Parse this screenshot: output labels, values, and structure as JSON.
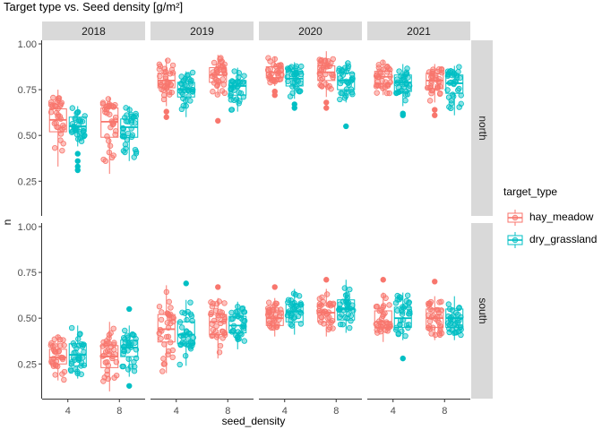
{
  "chart_data": {
    "type": "box_jitter",
    "title": "Target type vs. Seed density [g/m²]",
    "xlabel": "seed_density",
    "ylabel": "n",
    "ylim": [
      0.08,
      1.0
    ],
    "yticks": [
      "0.25",
      "0.50",
      "0.75",
      "1.00"
    ],
    "ytick_values": [
      0.25,
      0.5,
      0.75,
      1.0
    ],
    "x_categories": [
      "4",
      "8"
    ],
    "facet_columns": [
      "2018",
      "2019",
      "2020",
      "2021"
    ],
    "facet_rows": [
      "north",
      "south"
    ],
    "legend": {
      "title": "target_type",
      "position": "right",
      "entries": [
        {
          "name": "hay_meadow",
          "color": "#F8766D"
        },
        {
          "name": "dry_grassland",
          "color": "#00BFC4"
        }
      ]
    },
    "grid": false,
    "boxes": [
      {
        "row": "north",
        "year": "2018",
        "density": "4",
        "type": "hay_meadow",
        "min": 0.33,
        "q1": 0.52,
        "median": 0.585,
        "q3": 0.645,
        "max": 0.75,
        "outliers": []
      },
      {
        "row": "north",
        "year": "2018",
        "density": "4",
        "type": "dry_grassland",
        "min": 0.44,
        "q1": 0.52,
        "median": 0.55,
        "q3": 0.6,
        "max": 0.66,
        "outliers": [
          0.4,
          0.36,
          0.33,
          0.31
        ]
      },
      {
        "row": "north",
        "year": "2018",
        "density": "8",
        "type": "hay_meadow",
        "min": 0.29,
        "q1": 0.49,
        "median": 0.575,
        "q3": 0.65,
        "max": 0.71,
        "outliers": []
      },
      {
        "row": "north",
        "year": "2018",
        "density": "8",
        "type": "dry_grassland",
        "min": 0.36,
        "q1": 0.49,
        "median": 0.545,
        "q3": 0.59,
        "max": 0.66,
        "outliers": []
      },
      {
        "row": "north",
        "year": "2019",
        "density": "4",
        "type": "hay_meadow",
        "min": 0.66,
        "q1": 0.76,
        "median": 0.8,
        "q3": 0.84,
        "max": 0.92,
        "outliers": [
          0.63,
          0.6
        ]
      },
      {
        "row": "north",
        "year": "2019",
        "density": "4",
        "type": "dry_grassland",
        "min": 0.6,
        "q1": 0.71,
        "median": 0.75,
        "q3": 0.79,
        "max": 0.85,
        "outliers": []
      },
      {
        "row": "north",
        "year": "2019",
        "density": "8",
        "type": "hay_meadow",
        "min": 0.72,
        "q1": 0.79,
        "median": 0.83,
        "q3": 0.87,
        "max": 0.94,
        "outliers": [
          0.58
        ]
      },
      {
        "row": "north",
        "year": "2019",
        "density": "8",
        "type": "dry_grassland",
        "min": 0.63,
        "q1": 0.72,
        "median": 0.77,
        "q3": 0.8,
        "max": 0.87,
        "outliers": []
      },
      {
        "row": "north",
        "year": "2020",
        "density": "4",
        "type": "hay_meadow",
        "min": 0.77,
        "q1": 0.815,
        "median": 0.845,
        "q3": 0.875,
        "max": 0.93,
        "outliers": [
          0.74,
          0.72
        ]
      },
      {
        "row": "north",
        "year": "2020",
        "density": "4",
        "type": "dry_grassland",
        "min": 0.7,
        "q1": 0.77,
        "median": 0.81,
        "q3": 0.85,
        "max": 0.9,
        "outliers": [
          0.67,
          0.65
        ]
      },
      {
        "row": "north",
        "year": "2020",
        "density": "8",
        "type": "hay_meadow",
        "min": 0.71,
        "q1": 0.8,
        "median": 0.845,
        "q3": 0.88,
        "max": 0.96,
        "outliers": [
          0.68,
          0.65
        ]
      },
      {
        "row": "north",
        "year": "2020",
        "density": "8",
        "type": "dry_grassland",
        "min": 0.68,
        "q1": 0.75,
        "median": 0.8,
        "q3": 0.84,
        "max": 0.9,
        "outliers": [
          0.55
        ]
      },
      {
        "row": "north",
        "year": "2021",
        "density": "4",
        "type": "hay_meadow",
        "min": 0.72,
        "q1": 0.78,
        "median": 0.82,
        "q3": 0.85,
        "max": 0.91,
        "outliers": []
      },
      {
        "row": "north",
        "year": "2021",
        "density": "4",
        "type": "dry_grassland",
        "min": 0.66,
        "q1": 0.74,
        "median": 0.79,
        "q3": 0.83,
        "max": 0.89,
        "outliers": [
          0.62,
          0.61
        ]
      },
      {
        "row": "north",
        "year": "2021",
        "density": "8",
        "type": "hay_meadow",
        "min": 0.68,
        "q1": 0.755,
        "median": 0.8,
        "q3": 0.84,
        "max": 0.89,
        "outliers": [
          0.64,
          0.61
        ]
      },
      {
        "row": "north",
        "year": "2021",
        "density": "8",
        "type": "dry_grassland",
        "min": 0.61,
        "q1": 0.73,
        "median": 0.785,
        "q3": 0.83,
        "max": 0.88,
        "outliers": []
      },
      {
        "row": "south",
        "year": "2018",
        "density": "4",
        "type": "hay_meadow",
        "min": 0.16,
        "q1": 0.25,
        "median": 0.285,
        "q3": 0.33,
        "max": 0.41,
        "outliers": []
      },
      {
        "row": "south",
        "year": "2018",
        "density": "4",
        "type": "dry_grassland",
        "min": 0.17,
        "q1": 0.24,
        "median": 0.3,
        "q3": 0.36,
        "max": 0.46,
        "outliers": []
      },
      {
        "row": "south",
        "year": "2018",
        "density": "8",
        "type": "hay_meadow",
        "min": 0.1,
        "q1": 0.23,
        "median": 0.29,
        "q3": 0.35,
        "max": 0.48,
        "outliers": []
      },
      {
        "row": "south",
        "year": "2018",
        "density": "8",
        "type": "dry_grassland",
        "min": 0.18,
        "q1": 0.29,
        "median": 0.34,
        "q3": 0.38,
        "max": 0.46,
        "outliers": [
          0.55,
          0.13
        ]
      },
      {
        "row": "south",
        "year": "2019",
        "density": "4",
        "type": "hay_meadow",
        "min": 0.2,
        "q1": 0.37,
        "median": 0.44,
        "q3": 0.52,
        "max": 0.68,
        "outliers": []
      },
      {
        "row": "south",
        "year": "2019",
        "density": "4",
        "type": "dry_grassland",
        "min": 0.24,
        "q1": 0.36,
        "median": 0.41,
        "q3": 0.48,
        "max": 0.6,
        "outliers": [
          0.69
        ]
      },
      {
        "row": "south",
        "year": "2019",
        "density": "8",
        "type": "hay_meadow",
        "min": 0.28,
        "q1": 0.41,
        "median": 0.48,
        "q3": 0.52,
        "max": 0.61,
        "outliers": [
          0.67
        ]
      },
      {
        "row": "south",
        "year": "2019",
        "density": "8",
        "type": "dry_grassland",
        "min": 0.33,
        "q1": 0.42,
        "median": 0.46,
        "q3": 0.51,
        "max": 0.59,
        "outliers": []
      },
      {
        "row": "south",
        "year": "2020",
        "density": "4",
        "type": "hay_meadow",
        "min": 0.4,
        "q1": 0.46,
        "median": 0.5,
        "q3": 0.54,
        "max": 0.61,
        "outliers": [
          0.67
        ]
      },
      {
        "row": "south",
        "year": "2020",
        "density": "4",
        "type": "dry_grassland",
        "min": 0.41,
        "q1": 0.48,
        "median": 0.535,
        "q3": 0.575,
        "max": 0.66,
        "outliers": []
      },
      {
        "row": "south",
        "year": "2020",
        "density": "8",
        "type": "hay_meadow",
        "min": 0.4,
        "q1": 0.48,
        "median": 0.53,
        "q3": 0.57,
        "max": 0.66,
        "outliers": [
          0.71
        ]
      },
      {
        "row": "south",
        "year": "2020",
        "density": "8",
        "type": "dry_grassland",
        "min": 0.42,
        "q1": 0.49,
        "median": 0.55,
        "q3": 0.6,
        "max": 0.71,
        "outliers": []
      },
      {
        "row": "south",
        "year": "2021",
        "density": "4",
        "type": "hay_meadow",
        "min": 0.37,
        "q1": 0.45,
        "median": 0.48,
        "q3": 0.54,
        "max": 0.64,
        "outliers": [
          0.71
        ]
      },
      {
        "row": "south",
        "year": "2021",
        "density": "4",
        "type": "dry_grassland",
        "min": 0.38,
        "q1": 0.45,
        "median": 0.5,
        "q3": 0.56,
        "max": 0.64,
        "outliers": [
          0.28
        ]
      },
      {
        "row": "south",
        "year": "2021",
        "density": "8",
        "type": "hay_meadow",
        "min": 0.38,
        "q1": 0.45,
        "median": 0.5,
        "q3": 0.55,
        "max": 0.62,
        "outliers": [
          0.7
        ]
      },
      {
        "row": "south",
        "year": "2021",
        "density": "8",
        "type": "dry_grassland",
        "min": 0.38,
        "q1": 0.45,
        "median": 0.5,
        "q3": 0.55,
        "max": 0.62,
        "outliers": []
      }
    ]
  }
}
